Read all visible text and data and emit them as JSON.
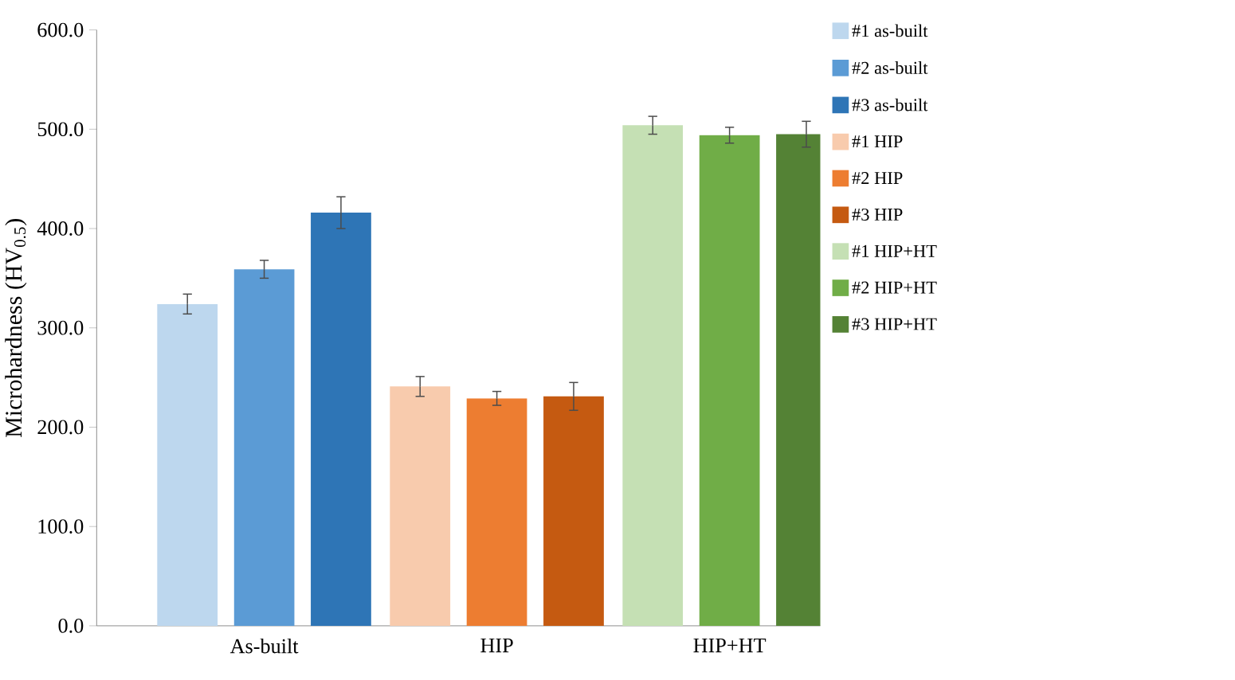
{
  "chart_data": {
    "type": "bar",
    "ylabel": "Microhardness (HV$_{0.5}$)",
    "categories": [
      "As-built",
      "HIP",
      "HIP+HT"
    ],
    "ylim": [
      0,
      600
    ],
    "yticks": [
      {
        "value": 0,
        "label": "0.0"
      },
      {
        "value": 100,
        "label": "100.0"
      },
      {
        "value": 200,
        "label": "200.0"
      },
      {
        "value": 300,
        "label": "300.0"
      },
      {
        "value": 400,
        "label": "400.0"
      },
      {
        "value": 500,
        "label": "500.0"
      },
      {
        "value": 600,
        "label": "600.0"
      }
    ],
    "grid": false,
    "legend": "right",
    "series": [
      {
        "name": "#1 as-built",
        "color": "#bdd7ee",
        "values": [
          324,
          null,
          null
        ],
        "errors": [
          10,
          null,
          null
        ]
      },
      {
        "name": "#2 as-built",
        "color": "#5b9bd5",
        "values": [
          359,
          null,
          null
        ],
        "errors": [
          9,
          null,
          null
        ]
      },
      {
        "name": "#3 as-built",
        "color": "#2e75b6",
        "values": [
          416,
          null,
          null
        ],
        "errors": [
          16,
          null,
          null
        ]
      },
      {
        "name": "#1 HIP",
        "color": "#f8cbad",
        "values": [
          null,
          241,
          null
        ],
        "errors": [
          null,
          10,
          null
        ]
      },
      {
        "name": "#2 HIP",
        "color": "#ed7d31",
        "values": [
          null,
          229,
          null
        ],
        "errors": [
          null,
          7,
          null
        ]
      },
      {
        "name": "#3 HIP",
        "color": "#c55a11",
        "values": [
          null,
          231,
          null
        ],
        "errors": [
          null,
          14,
          null
        ]
      },
      {
        "name": "#1 HIP+HT",
        "color": "#c5e0b4",
        "values": [
          null,
          null,
          504
        ],
        "errors": [
          null,
          null,
          9
        ]
      },
      {
        "name": "#2 HIP+HT",
        "color": "#70ad47",
        "values": [
          null,
          null,
          494
        ],
        "errors": [
          null,
          null,
          8
        ]
      },
      {
        "name": "#3 HIP+HT",
        "color": "#548235",
        "values": [
          null,
          null,
          495
        ],
        "errors": [
          null,
          null,
          13
        ]
      }
    ]
  }
}
